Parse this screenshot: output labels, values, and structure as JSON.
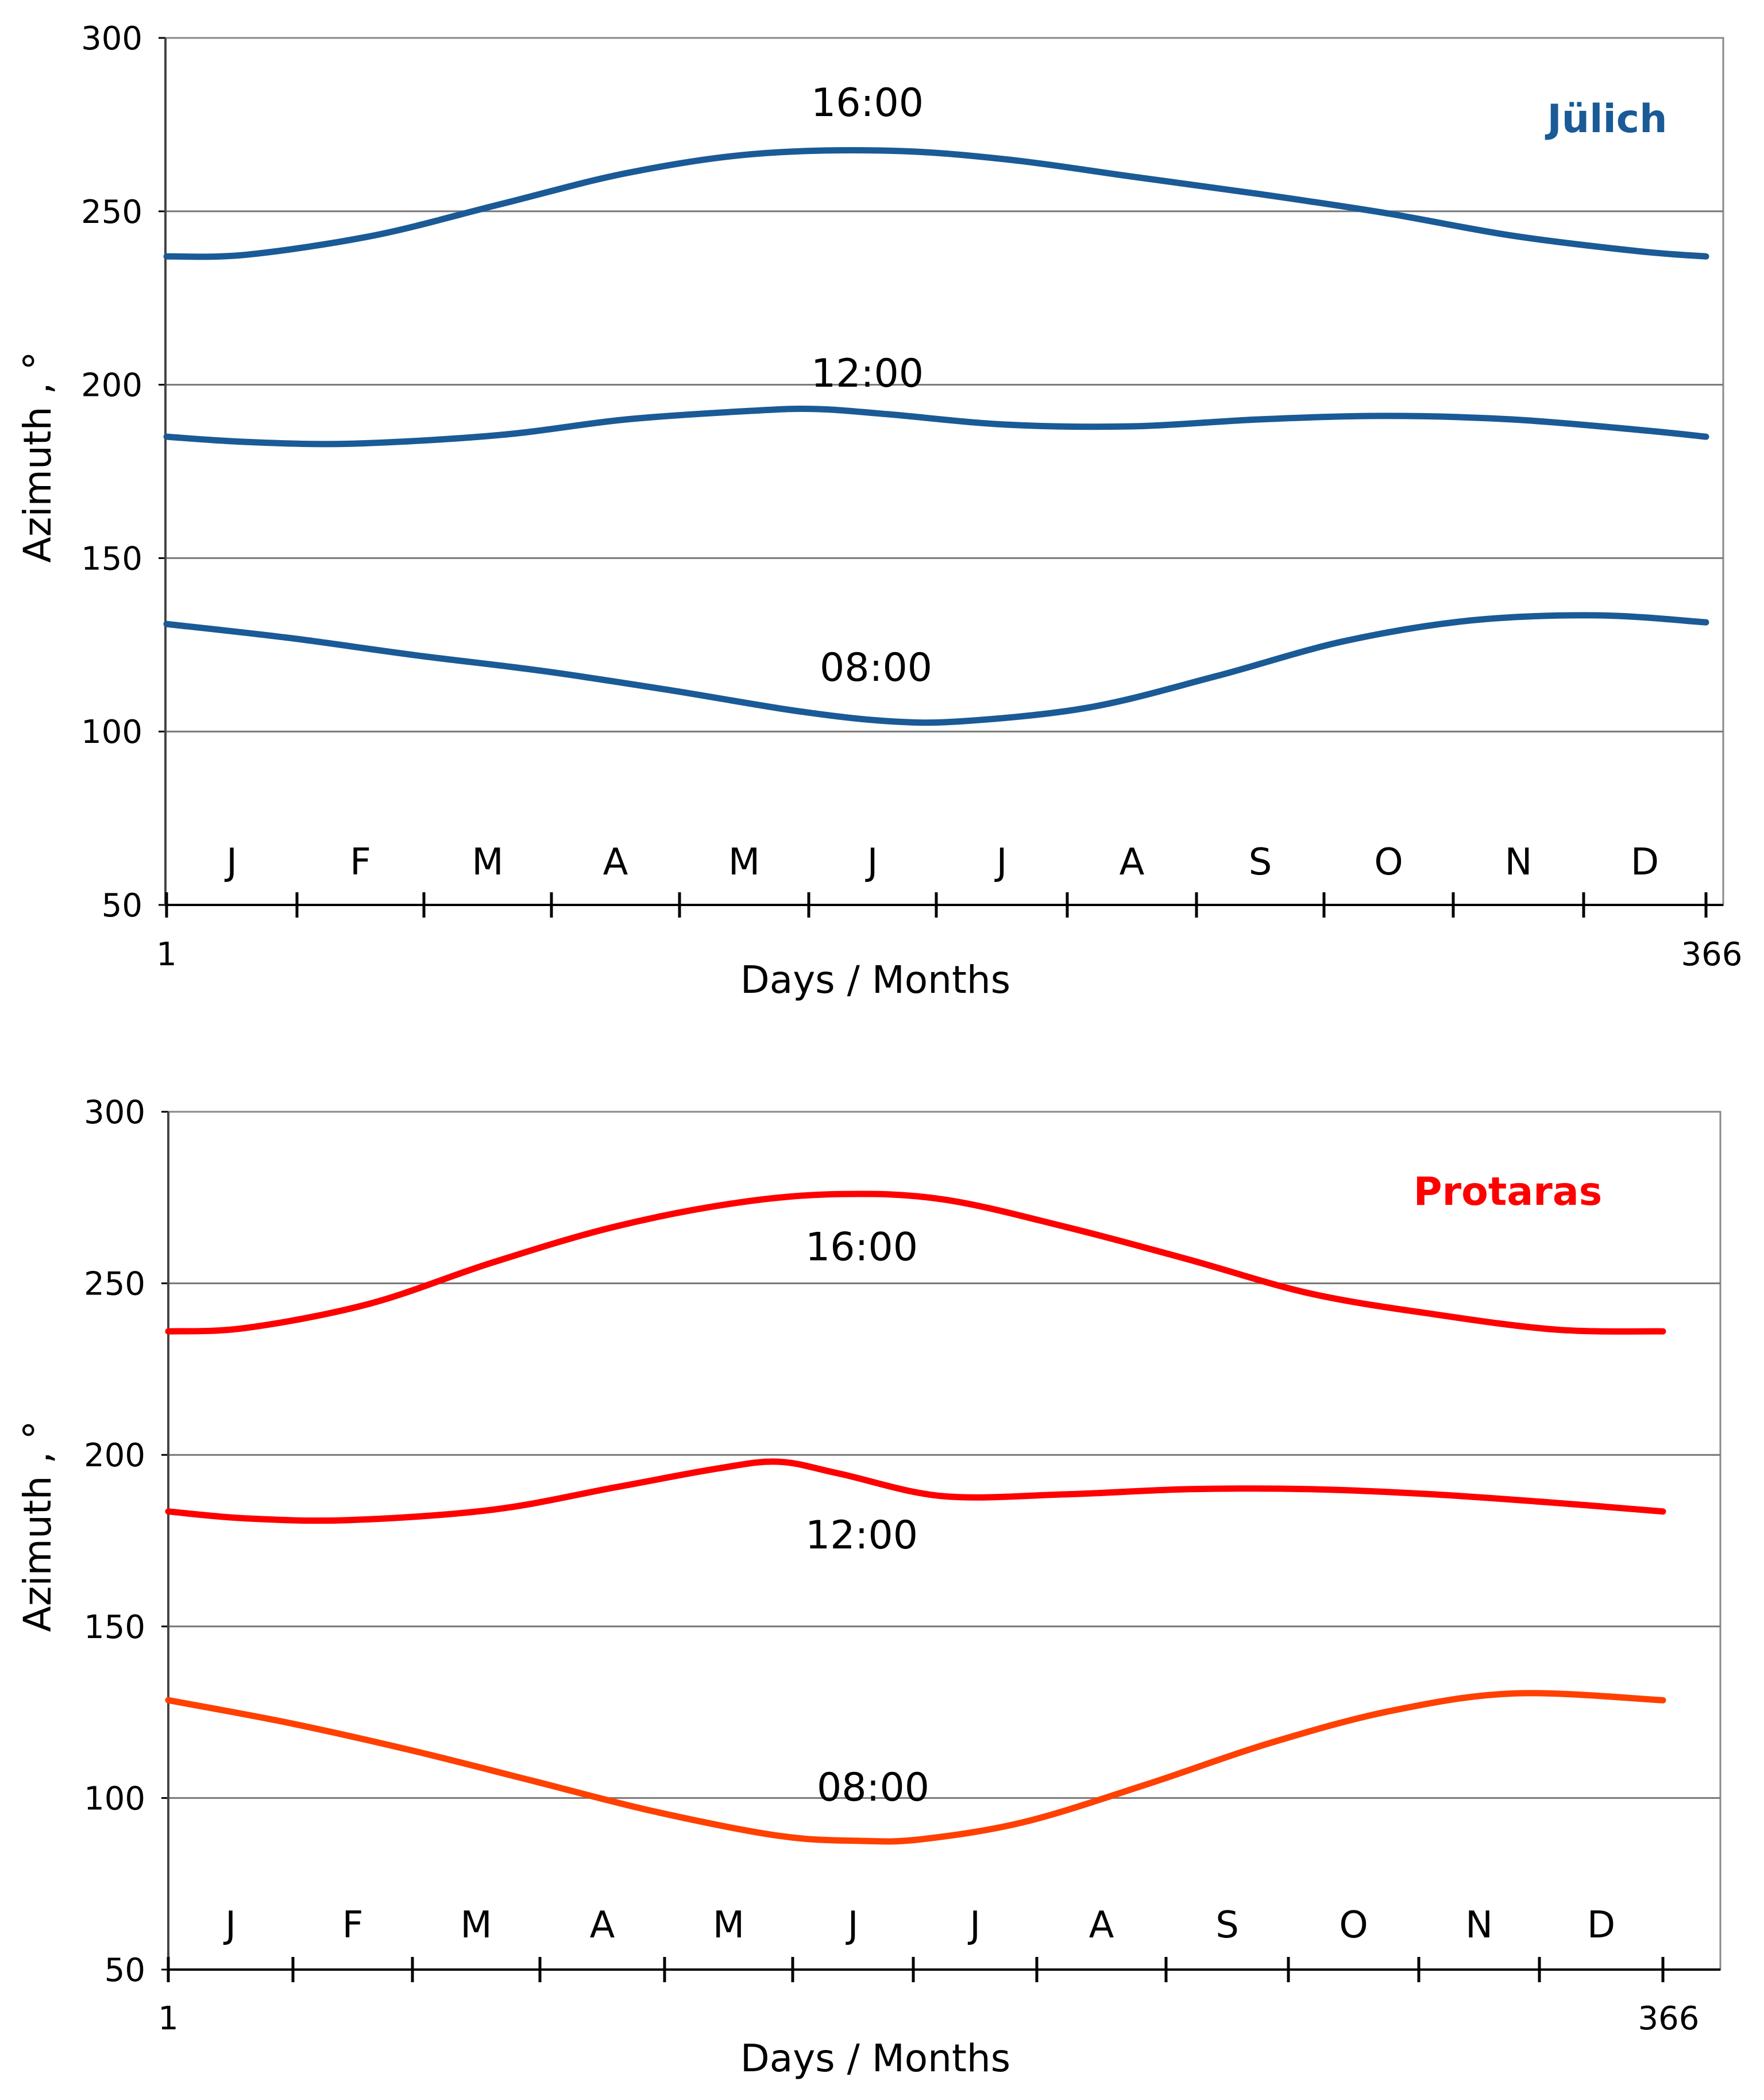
{
  "chart_data": [
    {
      "type": "line",
      "place": "Jülich",
      "place_color": "#1a5a96",
      "line_color": "#1a5a96",
      "xlabel": "Days / Months",
      "ylabel": "Azimuth , °",
      "xlim": [
        1,
        366
      ],
      "ylim": [
        50,
        300
      ],
      "yticks": [
        "50",
        "100",
        "150",
        "200",
        "250",
        "300"
      ],
      "x_start_label": "1",
      "x_end_label": "366",
      "months": [
        "J",
        "F",
        "M",
        "A",
        "M",
        "J",
        "J",
        "A",
        "S",
        "O",
        "N",
        "D"
      ],
      "series": [
        {
          "name": "16:00",
          "x": [
            1,
            20,
            50,
            80,
            110,
            140,
            172,
            200,
            230,
            260,
            290,
            320,
            350,
            366
          ],
          "values": [
            237,
            237.5,
            243,
            252,
            261,
            266.5,
            267.5,
            265,
            260,
            255,
            249.5,
            243,
            238.5,
            237
          ]
        },
        {
          "name": "12:00",
          "x": [
            1,
            20,
            45,
            80,
            110,
            140,
            155,
            172,
            200,
            230,
            260,
            290,
            320,
            350,
            366
          ],
          "values": [
            185,
            183.5,
            183,
            185.5,
            190,
            192.5,
            193,
            191.5,
            188.5,
            188,
            190,
            191,
            190,
            187,
            185
          ]
        },
        {
          "name": "08:00",
          "x": [
            1,
            30,
            60,
            90,
            120,
            150,
            172,
            190,
            220,
            250,
            280,
            310,
            340,
            366
          ],
          "values": [
            131,
            127,
            122,
            117.5,
            112,
            106,
            103,
            103,
            107,
            116,
            126,
            132,
            133.5,
            131.5
          ]
        }
      ],
      "label_positions": {
        "16:00": "above-peak",
        "12:00": "above-line",
        "08:00": "above-trough"
      }
    },
    {
      "type": "line",
      "place": "Protaras",
      "place_color": "#ff0000",
      "xlabel": "Days / Months",
      "ylabel": "Azimuth , °",
      "xlim": [
        1,
        366
      ],
      "ylim": [
        50,
        300
      ],
      "yticks": [
        "50",
        "100",
        "150",
        "200",
        "250",
        "300"
      ],
      "x_start_label": "1",
      "x_end_label": "366",
      "months": [
        "J",
        "F",
        "M",
        "A",
        "M",
        "J",
        "J",
        "A",
        "S",
        "O",
        "N",
        "D"
      ],
      "series": [
        {
          "name": "16:00",
          "color": "#ff0000",
          "x": [
            1,
            20,
            50,
            80,
            110,
            140,
            165,
            190,
            220,
            250,
            280,
            310,
            340,
            366
          ],
          "values": [
            236,
            237,
            244,
            256,
            266.5,
            273.5,
            276,
            274.5,
            266.5,
            257,
            247,
            241,
            236.5,
            236
          ]
        },
        {
          "name": "12:00",
          "color": "#ff0000",
          "x": [
            1,
            20,
            45,
            80,
            110,
            135,
            150,
            165,
            190,
            220,
            250,
            280,
            310,
            340,
            366
          ],
          "values": [
            183.5,
            181.5,
            181,
            184,
            190.5,
            196,
            198,
            194.5,
            188,
            188.5,
            190,
            190,
            188.5,
            186,
            183.5
          ]
        },
        {
          "name": "08:00",
          "color": "#ff4000",
          "x": [
            1,
            30,
            60,
            90,
            120,
            150,
            170,
            185,
            210,
            240,
            270,
            300,
            330,
            366
          ],
          "values": [
            128.5,
            122,
            114,
            105,
            96,
            89,
            87.5,
            88,
            93,
            104,
            116,
            125.5,
            130.5,
            128.5
          ]
        }
      ],
      "label_positions": {
        "16:00": "below-peak",
        "12:00": "below-line",
        "08:00": "above-trough"
      }
    }
  ]
}
